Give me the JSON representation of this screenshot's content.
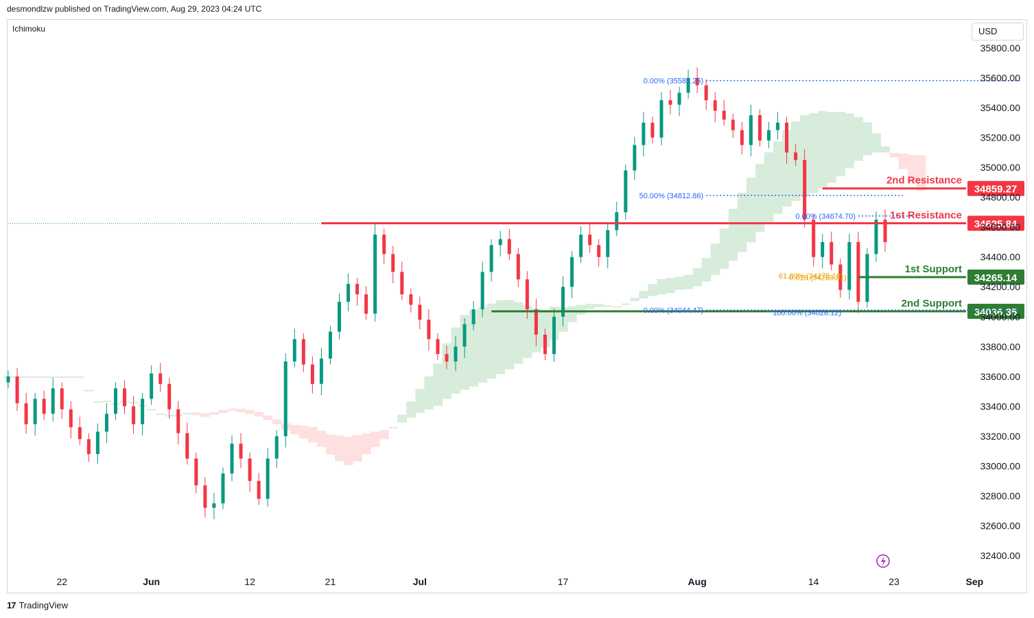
{
  "header": {
    "published_text": "desmondlzw published on TradingView.com, Aug 29, 2023 04:24 UTC",
    "indicator": "Ichimoku",
    "currency": "USD"
  },
  "footer": {
    "brand": "TradingView",
    "logo_glyph": "17"
  },
  "colors": {
    "up": "#089981",
    "down": "#f23645",
    "resistance": "#f23645",
    "support": "#2e7d32",
    "cloud_bull": "#d7ecda",
    "cloud_bear": "#fde0df",
    "fib": "#2962ff",
    "fib_gold": "#e6a000"
  },
  "chart_data": {
    "type": "candlestick",
    "ylim": [
      32300,
      35900
    ],
    "y_ticks": [
      32400,
      32600,
      32800,
      33000,
      33200,
      33400,
      33600,
      33800,
      34000,
      34200,
      34400,
      34600,
      34800,
      35000,
      35200,
      35400,
      35600,
      35800
    ],
    "y_tick_labels": [
      "32400.00",
      "32600.00",
      "32800.00",
      "33000.00",
      "33200.00",
      "33400.00",
      "33600.00",
      "33800.00",
      "34000.00",
      "34200.00",
      "34400.00",
      "34600.00",
      "34800.00",
      "35000.00",
      "35200.00",
      "35400.00",
      "35600.00",
      "35800.00"
    ],
    "x_ticks": [
      {
        "label": "22",
        "bold": false,
        "day": 6
      },
      {
        "label": "Jun",
        "bold": true,
        "day": 16
      },
      {
        "label": "12",
        "bold": false,
        "day": 27
      },
      {
        "label": "21",
        "bold": false,
        "day": 36
      },
      {
        "label": "Jul",
        "bold": true,
        "day": 46
      },
      {
        "label": "17",
        "bold": false,
        "day": 62
      },
      {
        "label": "Aug",
        "bold": true,
        "day": 77
      },
      {
        "label": "14",
        "bold": false,
        "day": 90
      },
      {
        "label": "23",
        "bold": false,
        "day": 99
      },
      {
        "label": "Sep",
        "bold": true,
        "day": 108
      }
    ],
    "levels": [
      {
        "name": "2nd Resistance",
        "value": 34859.27,
        "label": "34859.27",
        "kind": "resistance",
        "start_day": 91
      },
      {
        "name": "1st Resistance",
        "value": 34625.84,
        "label": "34625.84",
        "kind": "resistance",
        "start_day": 35
      },
      {
        "name": "1st Support",
        "value": 34265.14,
        "label": "34265.14",
        "kind": "support",
        "start_day": 95
      },
      {
        "name": "2nd Support",
        "value": 34036.35,
        "label": "34036.35",
        "kind": "support",
        "start_day": 54
      }
    ],
    "fib_labels": [
      {
        "text": "0.00% (35581.25)",
        "value": 35581.25,
        "day": 78,
        "color": "fib",
        "line_to_day": 113
      },
      {
        "text": "50.00% (34812.86)",
        "value": 34812.86,
        "day": 78,
        "color": "fib",
        "line_to_day": 100
      },
      {
        "text": "0.00% (34674.70)",
        "value": 34674.7,
        "day": 95,
        "color": "fib",
        "line_to_day": 101
      },
      {
        "text": "0.618 (34263.31)",
        "value": 34263.31,
        "day": 94,
        "color": "fib_gold",
        "line_to_day": 0
      },
      {
        "text": "61.80% (34275.18)",
        "value": 34275.18,
        "day": 93.6,
        "color": "fib_gold",
        "line_to_day": 0
      },
      {
        "text": "0.00% (34044.47)",
        "value": 34044.47,
        "day": 78,
        "color": "fib",
        "line_to_day": 113
      },
      {
        "text": "100.00% (34028.12)",
        "value": 34028.12,
        "day": 93.4,
        "color": "fib",
        "line_to_day": 0
      }
    ],
    "last_price_line": 34625,
    "closes": [
      33600,
      33420,
      33280,
      33450,
      33350,
      33520,
      33380,
      33260,
      33180,
      33080,
      33230,
      33350,
      33520,
      33400,
      33280,
      33450,
      33620,
      33550,
      33380,
      33220,
      33050,
      32870,
      32720,
      32750,
      32950,
      33150,
      33050,
      32900,
      32780,
      33050,
      33200,
      33700,
      33850,
      33680,
      33550,
      33720,
      33900,
      34100,
      34220,
      34150,
      34020,
      34550,
      34420,
      34300,
      34150,
      34080,
      33980,
      33850,
      33750,
      33700,
      33800,
      33950,
      34050,
      34300,
      34480,
      34520,
      34420,
      34250,
      34050,
      33880,
      33750,
      34000,
      34200,
      34400,
      34550,
      34480,
      34400,
      34580,
      34700,
      34980,
      35150,
      35300,
      35200,
      35450,
      35420,
      35500,
      35600,
      35550,
      35450,
      35380,
      35320,
      35250,
      35150,
      35350,
      35180,
      35250,
      35300,
      35100,
      35050,
      34650,
      34400,
      34500,
      34350,
      34180,
      34500,
      34100,
      34420,
      34650,
      34500
    ]
  }
}
